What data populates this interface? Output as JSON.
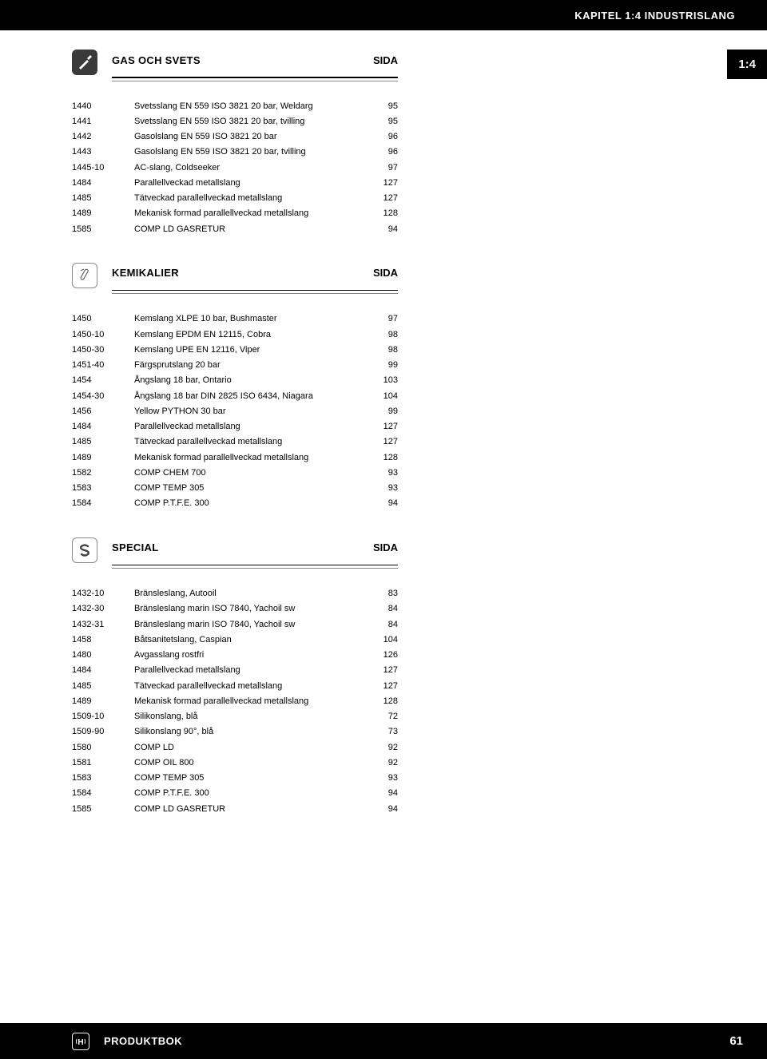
{
  "header": {
    "chapter_title": "KAPITEL 1:4 INDUSTRISLANG",
    "side_tab": "1:4"
  },
  "sections": [
    {
      "title": "GAS OCH SVETS",
      "sida": "SIDA",
      "icon": "gas",
      "rows": [
        {
          "code": "1440",
          "desc": "Svetsslang EN 559 ISO 3821 20 bar, Weldarg",
          "page": "95"
        },
        {
          "code": "1441",
          "desc": "Svetsslang EN 559 ISO 3821 20 bar, tvilling",
          "page": "95"
        },
        {
          "code": "1442",
          "desc": "Gasolslang EN 559 ISO 3821 20 bar",
          "page": "96"
        },
        {
          "code": "1443",
          "desc": "Gasolslang EN 559 ISO 3821 20 bar, tvilling",
          "page": "96"
        },
        {
          "code": "1445-10",
          "desc": "AC-slang, Coldseeker",
          "page": "97"
        },
        {
          "code": "1484",
          "desc": "Parallellveckad metallslang",
          "page": "127"
        },
        {
          "code": "1485",
          "desc": "Tätveckad parallellveckad metallslang",
          "page": "127"
        },
        {
          "code": "1489",
          "desc": "Mekanisk formad parallellveckad metallslang",
          "page": "128"
        },
        {
          "code": "1585",
          "desc": "COMP LD GASRETUR",
          "page": "94"
        }
      ]
    },
    {
      "title": "KEMIKALIER",
      "sida": "SIDA",
      "icon": "chem",
      "rows": [
        {
          "code": "1450",
          "desc": "Kemslang XLPE 10 bar, Bushmaster",
          "page": "97"
        },
        {
          "code": "1450-10",
          "desc": "Kemslang EPDM EN 12115, Cobra",
          "page": "98"
        },
        {
          "code": "1450-30",
          "desc": "Kemslang UPE EN 12116, Viper",
          "page": "98"
        },
        {
          "code": "1451-40",
          "desc": "Färgsprutslang 20 bar",
          "page": "99"
        },
        {
          "code": "1454",
          "desc": "Ångslang 18 bar, Ontario",
          "page": "103"
        },
        {
          "code": "1454-30",
          "desc": "Ångslang 18 bar DIN 2825 ISO 6434, Niagara",
          "page": "104"
        },
        {
          "code": "1456",
          "desc": "Yellow PYTHON 30 bar",
          "page": "99"
        },
        {
          "code": "1484",
          "desc": "Parallellveckad metallslang",
          "page": "127"
        },
        {
          "code": "1485",
          "desc": "Tätveckad parallellveckad metallslang",
          "page": "127"
        },
        {
          "code": "1489",
          "desc": "Mekanisk formad parallellveckad metallslang",
          "page": "128"
        },
        {
          "code": "1582",
          "desc": "COMP CHEM 700",
          "page": "93"
        },
        {
          "code": "1583",
          "desc": "COMP TEMP 305",
          "page": "93"
        },
        {
          "code": "1584",
          "desc": "COMP P.T.F.E. 300",
          "page": "94"
        }
      ]
    },
    {
      "title": "SPECIAL",
      "sida": "SIDA",
      "icon": "special",
      "rows": [
        {
          "code": "1432-10",
          "desc": "Bränsleslang, Autooil",
          "page": "83"
        },
        {
          "code": "1432-30",
          "desc": "Bränsleslang marin ISO 7840, Yachoil sw",
          "page": "84"
        },
        {
          "code": "1432-31",
          "desc": "Bränsleslang marin ISO 7840, Yachoil sw",
          "page": "84"
        },
        {
          "code": "1458",
          "desc": "Båtsanitetslang, Caspian",
          "page": "104"
        },
        {
          "code": "1480",
          "desc": "Avgasslang rostfri",
          "page": "126"
        },
        {
          "code": "1484",
          "desc": "Parallellveckad metallslang",
          "page": "127"
        },
        {
          "code": "1485",
          "desc": "Tätveckad parallellveckad metallslang",
          "page": "127"
        },
        {
          "code": "1489",
          "desc": "Mekanisk formad parallellveckad metallslang",
          "page": "128"
        },
        {
          "code": "1509-10",
          "desc": "Silikonslang, blå",
          "page": "72"
        },
        {
          "code": "1509-90",
          "desc": "Silikonslang 90°, blå",
          "page": "73"
        },
        {
          "code": "1580",
          "desc": "COMP LD",
          "page": "92"
        },
        {
          "code": "1581",
          "desc": "COMP OIL 800",
          "page": "92"
        },
        {
          "code": "1583",
          "desc": "COMP TEMP 305",
          "page": "93"
        },
        {
          "code": "1584",
          "desc": "COMP P.T.F.E. 300",
          "page": "94"
        },
        {
          "code": "1585",
          "desc": "COMP LD GASRETUR",
          "page": "94"
        }
      ]
    }
  ],
  "footer": {
    "label": "PRODUKTBOK",
    "page_num": "61"
  }
}
